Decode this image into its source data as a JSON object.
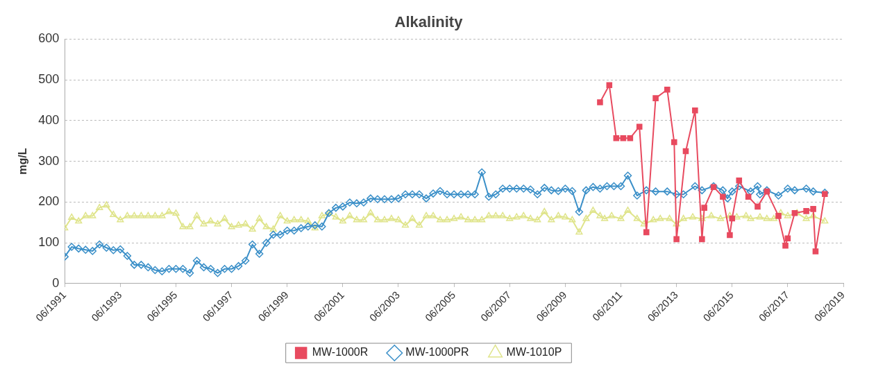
{
  "chart_data": {
    "type": "line",
    "title": "Alkalinity",
    "ylabel": "mg/L",
    "ylim": [
      0,
      600
    ],
    "yticks": [
      0,
      100,
      200,
      300,
      400,
      500,
      600
    ],
    "xlim": [
      "1991-06",
      "2019-06"
    ],
    "xticks": [
      {
        "value": "1991-06",
        "label": "06/1991"
      },
      {
        "value": "1993-06",
        "label": "06/1993"
      },
      {
        "value": "1995-06",
        "label": "06/1995"
      },
      {
        "value": "1997-06",
        "label": "06/1997"
      },
      {
        "value": "1999-06",
        "label": "06/1999"
      },
      {
        "value": "2001-06",
        "label": "06/2001"
      },
      {
        "value": "2003-06",
        "label": "06/2003"
      },
      {
        "value": "2005-06",
        "label": "06/2005"
      },
      {
        "value": "2007-06",
        "label": "06/2007"
      },
      {
        "value": "2009-06",
        "label": "06/2009"
      },
      {
        "value": "2011-06",
        "label": "06/2011"
      },
      {
        "value": "2013-06",
        "label": "06/2013"
      },
      {
        "value": "2015-06",
        "label": "06/2015"
      },
      {
        "value": "2017-06",
        "label": "06/2017"
      },
      {
        "value": "2019-06",
        "label": "06/2019"
      }
    ],
    "grid": "y",
    "legend": "bottom",
    "line_style": "solid",
    "series": [
      {
        "name": "MW-1000R",
        "color": "#e84a5f",
        "marker": "square",
        "x": [
          "2010-09",
          "2011-01",
          "2011-04",
          "2011-07",
          "2011-10",
          "2012-02",
          "2012-05",
          "2012-09",
          "2013-02",
          "2013-05",
          "2013-06",
          "2013-10",
          "2014-02",
          "2014-05",
          "2014-06",
          "2014-10",
          "2015-02",
          "2015-05",
          "2015-06",
          "2015-09",
          "2016-01",
          "2016-05",
          "2016-09",
          "2017-02",
          "2017-05",
          "2017-06",
          "2017-09",
          "2018-02",
          "2018-05",
          "2018-06",
          "2018-10"
        ],
        "values": [
          445,
          487,
          357,
          357,
          357,
          385,
          126,
          455,
          476,
          347,
          109,
          325,
          425,
          109,
          186,
          237,
          213,
          119,
          160,
          253,
          213,
          189,
          226,
          166,
          93,
          111,
          173,
          178,
          183,
          79,
          220
        ]
      },
      {
        "name": "MW-1000PR",
        "color": "#3a8fc8",
        "marker": "diamond",
        "x": [
          "1991-06",
          "1991-09",
          "1991-12",
          "1992-03",
          "1992-06",
          "1992-09",
          "1992-12",
          "1993-03",
          "1993-06",
          "1993-09",
          "1993-12",
          "1994-03",
          "1994-06",
          "1994-09",
          "1994-12",
          "1995-03",
          "1995-06",
          "1995-09",
          "1995-12",
          "1996-03",
          "1996-06",
          "1996-09",
          "1996-12",
          "1997-03",
          "1997-06",
          "1997-09",
          "1997-12",
          "1998-03",
          "1998-06",
          "1998-09",
          "1998-12",
          "1999-03",
          "1999-06",
          "1999-09",
          "1999-12",
          "2000-03",
          "2000-06",
          "2000-09",
          "2000-12",
          "2001-03",
          "2001-06",
          "2001-09",
          "2001-12",
          "2002-03",
          "2002-06",
          "2002-09",
          "2002-12",
          "2003-03",
          "2003-06",
          "2003-09",
          "2003-12",
          "2004-03",
          "2004-06",
          "2004-09",
          "2004-12",
          "2005-03",
          "2005-06",
          "2005-09",
          "2005-12",
          "2006-03",
          "2006-06",
          "2006-09",
          "2006-12",
          "2007-03",
          "2007-06",
          "2007-09",
          "2007-12",
          "2008-03",
          "2008-06",
          "2008-09",
          "2008-12",
          "2009-03",
          "2009-06",
          "2009-09",
          "2009-12",
          "2010-03",
          "2010-06",
          "2010-09",
          "2010-12",
          "2011-03",
          "2011-06",
          "2011-09",
          "2012-01",
          "2012-05",
          "2012-09",
          "2013-02",
          "2013-06",
          "2013-09",
          "2014-02",
          "2014-05",
          "2014-10",
          "2015-02",
          "2015-04",
          "2015-06",
          "2015-09",
          "2016-02",
          "2016-05",
          "2016-06",
          "2016-09",
          "2017-02",
          "2017-06",
          "2017-09",
          "2018-02",
          "2018-05",
          "2018-10"
        ],
        "values": [
          66,
          90,
          86,
          83,
          80,
          96,
          88,
          82,
          84,
          68,
          46,
          46,
          40,
          33,
          30,
          36,
          36,
          36,
          26,
          56,
          40,
          36,
          26,
          36,
          36,
          43,
          56,
          96,
          73,
          100,
          120,
          120,
          130,
          130,
          136,
          140,
          143,
          140,
          173,
          186,
          189,
          199,
          197,
          199,
          209,
          207,
          207,
          207,
          209,
          219,
          219,
          219,
          209,
          221,
          227,
          219,
          219,
          219,
          219,
          219,
          273,
          213,
          219,
          233,
          233,
          233,
          233,
          231,
          219,
          235,
          229,
          227,
          233,
          227,
          176,
          229,
          237,
          233,
          239,
          239,
          239,
          265,
          216,
          229,
          226,
          226,
          219,
          219,
          239,
          229,
          239,
          229,
          209,
          226,
          239,
          226,
          239,
          219,
          229,
          216,
          233,
          229,
          233,
          226,
          223
        ]
      },
      {
        "name": "MW-1010P",
        "color": "#dfe48a",
        "marker": "triangle",
        "x": [
          "1991-06",
          "1991-09",
          "1991-12",
          "1992-03",
          "1992-06",
          "1992-09",
          "1992-12",
          "1993-03",
          "1993-06",
          "1993-09",
          "1993-12",
          "1994-03",
          "1994-06",
          "1994-09",
          "1994-12",
          "1995-03",
          "1995-06",
          "1995-09",
          "1995-12",
          "1996-03",
          "1996-06",
          "1996-09",
          "1996-12",
          "1997-03",
          "1997-06",
          "1997-09",
          "1997-12",
          "1998-03",
          "1998-06",
          "1998-09",
          "1998-12",
          "1999-03",
          "1999-06",
          "1999-09",
          "1999-12",
          "2000-03",
          "2000-06",
          "2000-09",
          "2000-12",
          "2001-03",
          "2001-06",
          "2001-09",
          "2001-12",
          "2002-03",
          "2002-06",
          "2002-09",
          "2002-12",
          "2003-03",
          "2003-06",
          "2003-09",
          "2003-12",
          "2004-03",
          "2004-06",
          "2004-09",
          "2004-12",
          "2005-03",
          "2005-06",
          "2005-09",
          "2005-12",
          "2006-03",
          "2006-06",
          "2006-09",
          "2006-12",
          "2007-03",
          "2007-06",
          "2007-09",
          "2007-12",
          "2008-03",
          "2008-06",
          "2008-09",
          "2008-12",
          "2009-03",
          "2009-06",
          "2009-09",
          "2009-12",
          "2010-03",
          "2010-06",
          "2010-09",
          "2010-11",
          "2011-02",
          "2011-06",
          "2011-09",
          "2012-01",
          "2012-04",
          "2012-08",
          "2012-11",
          "2013-03",
          "2013-06",
          "2013-09",
          "2014-01",
          "2014-05",
          "2014-09",
          "2015-01",
          "2015-05",
          "2015-08",
          "2015-12",
          "2016-02",
          "2016-06",
          "2016-09",
          "2016-12",
          "2017-03",
          "2017-06",
          "2017-10",
          "2018-02",
          "2018-05",
          "2018-10"
        ],
        "values": [
          136,
          162,
          153,
          166,
          166,
          186,
          192,
          169,
          156,
          166,
          166,
          166,
          166,
          166,
          166,
          176,
          172,
          139,
          139,
          166,
          146,
          153,
          146,
          159,
          139,
          143,
          146,
          133,
          159,
          139,
          133,
          166,
          153,
          156,
          156,
          153,
          136,
          166,
          172,
          163,
          153,
          166,
          156,
          156,
          173,
          156,
          156,
          159,
          156,
          143,
          159,
          143,
          166,
          166,
          156,
          156,
          159,
          163,
          156,
          156,
          156,
          166,
          166,
          166,
          159,
          163,
          166,
          159,
          156,
          176,
          156,
          166,
          163,
          156,
          126,
          159,
          179,
          166,
          159,
          166,
          159,
          179,
          159,
          146,
          156,
          159,
          159,
          146,
          159,
          163,
          159,
          166,
          159,
          166,
          163,
          166,
          159,
          163,
          159,
          159,
          173,
          166,
          173,
          159,
          166,
          153
        ]
      }
    ]
  }
}
